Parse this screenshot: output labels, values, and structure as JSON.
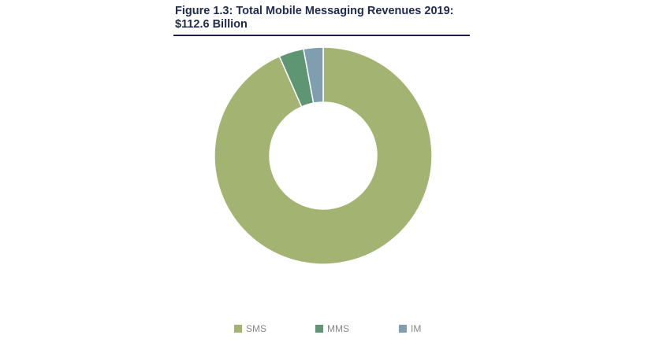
{
  "chart_data": {
    "type": "pie",
    "variant": "donut",
    "title": "Figure 1.3: Total Mobile Messaging Revenues 2019:",
    "subtitle": "$112.6 Billion",
    "categories": [
      "SMS",
      "MMS",
      "IM"
    ],
    "values_percent_estimated": [
      93.4,
      3.7,
      2.9
    ],
    "colors": [
      "#a3b472",
      "#5e9673",
      "#7f9fb0"
    ],
    "legend_position": "bottom"
  }
}
